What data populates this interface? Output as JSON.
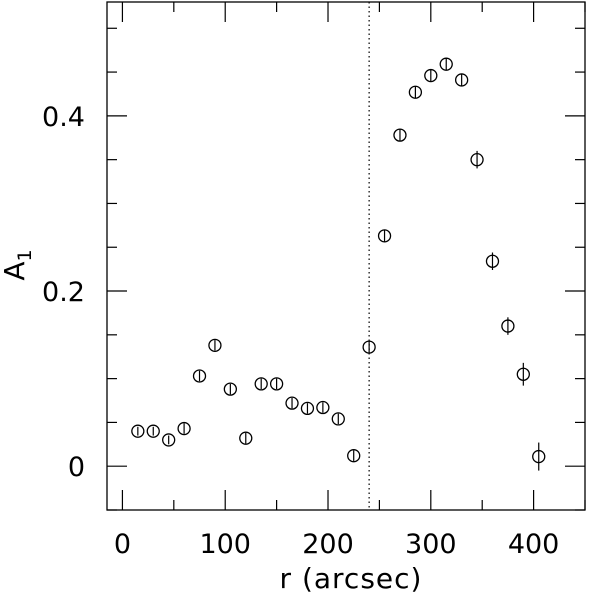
{
  "chart_data": {
    "type": "scatter",
    "title": "",
    "xlabel": "r (arcsec)",
    "ylabel": "A",
    "ylabel_subscript": "1",
    "xlim": [
      -15,
      450
    ],
    "ylim": [
      -0.05,
      0.53
    ],
    "xticks": [
      0,
      100,
      200,
      300,
      400
    ],
    "xtick_labels": [
      "0",
      "100",
      "200",
      "300",
      "400"
    ],
    "yticks": [
      0,
      0.2,
      0.4
    ],
    "ytick_labels": [
      "0",
      "0.2",
      "0.4"
    ],
    "x_minor_step": 50,
    "y_minor_step": 0.05,
    "grid": false,
    "legend": "none",
    "marker": "open-circle-with-vertical-errorbar",
    "color": "#000000",
    "reference_line": {
      "x": 240,
      "style": "dotted"
    },
    "series": [
      {
        "x": [
          15,
          30,
          45,
          60,
          75,
          90,
          105,
          120,
          135,
          150,
          165,
          180,
          195,
          210,
          225,
          240,
          255,
          270,
          285,
          300,
          315,
          330,
          345,
          360,
          375,
          390,
          405
        ],
        "y": [
          0.04,
          0.04,
          0.03,
          0.043,
          0.103,
          0.138,
          0.088,
          0.032,
          0.094,
          0.094,
          0.072,
          0.066,
          0.067,
          0.054,
          0.012,
          0.136,
          0.263,
          0.378,
          0.427,
          0.446,
          0.459,
          0.441,
          0.35,
          0.234,
          0.16,
          0.105,
          0.011
        ],
        "yerr": [
          0.005,
          0.005,
          0.005,
          0.006,
          0.006,
          0.006,
          0.006,
          0.006,
          0.006,
          0.006,
          0.006,
          0.006,
          0.006,
          0.006,
          0.006,
          0.007,
          0.007,
          0.007,
          0.007,
          0.007,
          0.007,
          0.007,
          0.01,
          0.01,
          0.01,
          0.013,
          0.016
        ]
      }
    ]
  }
}
